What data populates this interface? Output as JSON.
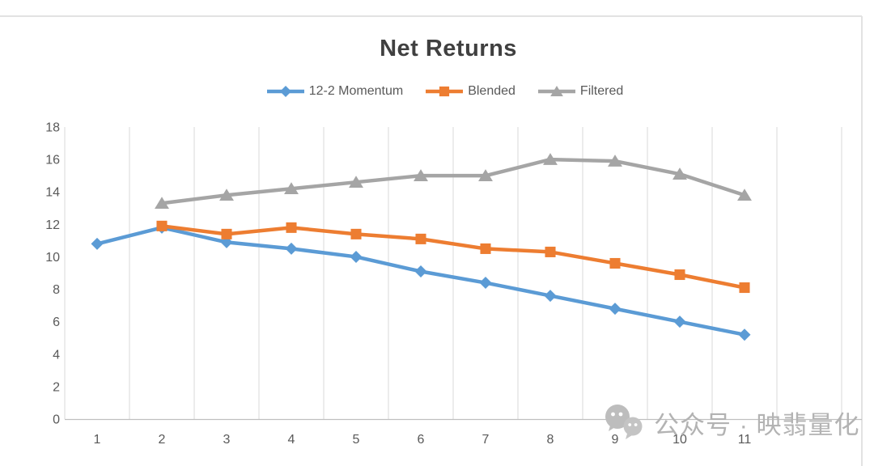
{
  "title": "Net Returns",
  "watermark": {
    "icon": "wechat-icon",
    "text": "公众号 · 映翡量化"
  },
  "colors": {
    "series_blue": "#5B9BD5",
    "series_orange": "#ED7D31",
    "series_gray": "#A5A5A5",
    "grid": "#D9D9D9",
    "axis_line": "#BFBFBF",
    "frame_border": "#E2E2E2",
    "tick_text": "#595959",
    "title_text": "#404040",
    "watermark_gray": "#B3B3B3"
  },
  "chart_data": {
    "type": "line",
    "title": "Net Returns",
    "xlabel": "",
    "ylabel": "",
    "categories": [
      1,
      2,
      3,
      4,
      5,
      6,
      7,
      8,
      9,
      10,
      11
    ],
    "y_ticks": [
      0,
      2,
      4,
      6,
      8,
      10,
      12,
      14,
      16,
      18
    ],
    "ylim": [
      0,
      18
    ],
    "grid": "vertical-only",
    "legend_position": "top-center",
    "series": [
      {
        "name": "12-2 Momentum",
        "color": "#5B9BD5",
        "marker": "diamond",
        "values": [
          10.8,
          11.8,
          10.9,
          10.5,
          10.0,
          9.1,
          8.4,
          7.6,
          6.8,
          6.0,
          5.2
        ]
      },
      {
        "name": "Blended",
        "color": "#ED7D31",
        "marker": "square",
        "values": [
          null,
          11.9,
          11.4,
          11.8,
          11.4,
          11.1,
          10.5,
          10.3,
          9.6,
          8.9,
          8.1
        ]
      },
      {
        "name": "Filtered",
        "color": "#A5A5A5",
        "marker": "triangle",
        "values": [
          null,
          13.3,
          13.8,
          14.2,
          14.6,
          15.0,
          15.0,
          16.0,
          15.9,
          15.1,
          13.8
        ]
      }
    ]
  }
}
